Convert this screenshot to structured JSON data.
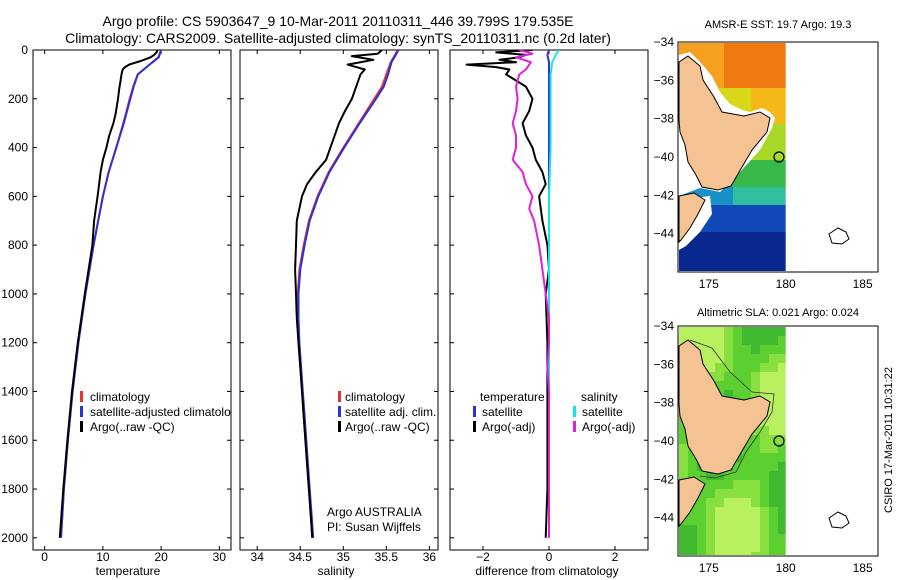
{
  "header": {
    "line1": "Argo profile: CS 5903647_9 10-Mar-2011 20110311_446 39.799S 179.535E",
    "line2": "Climatology: CARS2009. Satellite-adjusted climatology: synTS_20110311.nc (0.2d later)"
  },
  "colors": {
    "climatology": "#e8322a",
    "satellite": "#2b33d8",
    "argo": "#000000",
    "satellite_salinity_diff": "#19e3f0",
    "argo_salinity_diff": "#e020d8",
    "land": "#f5c294"
  },
  "credit": {
    "argo_label": "Argo AUSTRALIA",
    "pi_label": "PI: Susan Wijffels",
    "side_text": "CSIRO 17-Mar-2011 10:31:22"
  },
  "chart_data": [
    {
      "type": "line",
      "name": "temperature-profile",
      "xlabel": "temperature",
      "ylabel": "",
      "xlim": [
        -2,
        32
      ],
      "ylim": [
        2050,
        0
      ],
      "xticks": [
        0,
        10,
        20,
        30
      ],
      "yticks": [
        0,
        200,
        400,
        600,
        800,
        1000,
        1200,
        1400,
        1600,
        1800,
        2000
      ],
      "legend_position": "middle-right",
      "series": [
        {
          "name": "climatology",
          "color": "#e8322a",
          "depth": [
            0,
            30,
            60,
            100,
            150,
            200,
            300,
            400,
            500,
            600,
            700,
            800,
            1000,
            1200,
            1400,
            1600,
            1800,
            2000
          ],
          "values": [
            20.0,
            19.5,
            18.0,
            16.0,
            15.2,
            14.6,
            13.5,
            12.3,
            11.0,
            10.0,
            9.2,
            8.4,
            7.0,
            5.8,
            4.8,
            4.0,
            3.3,
            2.8
          ]
        },
        {
          "name": "satellite-adjusted climatology",
          "color": "#2b33d8",
          "depth": [
            0,
            30,
            60,
            100,
            150,
            200,
            300,
            400,
            500,
            600,
            700,
            800,
            1000,
            1200,
            1400,
            1600,
            1800,
            2000
          ],
          "values": [
            20.0,
            19.6,
            18.0,
            16.0,
            15.3,
            14.7,
            13.6,
            12.3,
            11.0,
            10.0,
            9.2,
            8.4,
            7.0,
            5.8,
            4.8,
            4.0,
            3.3,
            2.8
          ]
        },
        {
          "name": "Argo(..raw -QC)",
          "color": "#000000",
          "depth": [
            0,
            10,
            20,
            30,
            45,
            60,
            70,
            80,
            100,
            130,
            160,
            200,
            260,
            300,
            350,
            400,
            450,
            500,
            600,
            700,
            800,
            1000,
            1200,
            1400,
            1600,
            1800,
            2000
          ],
          "values": [
            19.4,
            19.2,
            18.8,
            18.2,
            16.5,
            14.5,
            13.8,
            13.4,
            13.2,
            13.0,
            12.8,
            12.6,
            12.2,
            11.8,
            11.1,
            10.6,
            10.0,
            9.6,
            9.1,
            8.5,
            8.2,
            6.9,
            5.7,
            4.7,
            3.9,
            3.2,
            2.6
          ]
        }
      ]
    },
    {
      "type": "line",
      "name": "salinity-profile",
      "xlabel": "salinity",
      "ylabel": "",
      "xlim": [
        33.8,
        36.1
      ],
      "ylim": [
        2050,
        0
      ],
      "xticks": [
        34,
        34.5,
        35,
        35.5,
        36
      ],
      "legend_position": "middle-right",
      "series": [
        {
          "name": "climatology",
          "color": "#e8322a",
          "depth": [
            0,
            20,
            50,
            100,
            150,
            200,
            300,
            400,
            500,
            600,
            700,
            800,
            900,
            1000,
            1100,
            1200,
            1300,
            1400,
            1500,
            1600,
            1700,
            1800,
            1900,
            2000
          ],
          "values": [
            35.63,
            35.6,
            35.55,
            35.5,
            35.45,
            35.36,
            35.18,
            35.0,
            34.83,
            34.7,
            34.6,
            34.54,
            34.49,
            34.47,
            34.47,
            34.48,
            34.5,
            34.52,
            34.54,
            34.56,
            34.58,
            34.6,
            34.62,
            34.64
          ]
        },
        {
          "name": "satellite adj. clim.",
          "color": "#2b33d8",
          "depth": [
            0,
            20,
            50,
            100,
            150,
            200,
            300,
            400,
            500,
            600,
            700,
            800,
            900,
            1000,
            1100,
            1200,
            1300,
            1400,
            1500,
            1600,
            1700,
            1800,
            1900,
            2000
          ],
          "values": [
            35.64,
            35.61,
            35.56,
            35.52,
            35.47,
            35.38,
            35.19,
            35.01,
            34.84,
            34.71,
            34.61,
            34.55,
            34.5,
            34.48,
            34.48,
            34.49,
            34.51,
            34.53,
            34.55,
            34.57,
            34.59,
            34.61,
            34.63,
            34.65
          ]
        },
        {
          "name": "Argo(..raw -QC)",
          "color": "#000000",
          "depth": [
            0,
            15,
            25,
            40,
            60,
            80,
            100,
            150,
            200,
            250,
            300,
            350,
            400,
            450,
            500,
            550,
            600,
            700,
            800,
            900,
            1000,
            1100,
            1200,
            1300,
            1400,
            1500,
            1600,
            1700,
            1800,
            1900,
            2000
          ],
          "values": [
            35.45,
            35.4,
            35.1,
            35.35,
            35.05,
            35.25,
            35.2,
            35.15,
            35.1,
            35.02,
            34.95,
            34.9,
            34.85,
            34.8,
            34.68,
            34.58,
            34.52,
            34.46,
            34.45,
            34.44,
            34.45,
            34.46,
            34.48,
            34.5,
            34.52,
            34.54,
            34.56,
            34.58,
            34.6,
            34.62,
            34.64
          ]
        }
      ],
      "annotations": [
        "Argo AUSTRALIA",
        "PI: Susan Wijffels"
      ]
    },
    {
      "type": "line",
      "name": "difference-profile",
      "xlabel": "difference from climatology",
      "ylabel": "",
      "xlim": [
        -3,
        3
      ],
      "ylim": [
        2050,
        0
      ],
      "xticks": [
        -2,
        0,
        2
      ],
      "legend_position": "middle",
      "legend_groups": [
        "temperature",
        "salinity"
      ],
      "series": [
        {
          "name": "satellite",
          "group": "temperature",
          "color": "#2b33d8",
          "depth": [
            0,
            20,
            50,
            100,
            200,
            400,
            600,
            800,
            1000,
            1200,
            1400,
            1600,
            1800,
            2000
          ],
          "values": [
            0.0,
            -0.05,
            0.0,
            0.0,
            0.0,
            0.0,
            0.0,
            0.0,
            0.0,
            0.0,
            0.0,
            0.0,
            0.0,
            0.0
          ]
        },
        {
          "name": "Argo(-adj)",
          "group": "temperature",
          "color": "#000000",
          "depth": [
            0,
            10,
            20,
            30,
            40,
            50,
            60,
            70,
            80,
            100,
            150,
            200,
            250,
            300,
            350,
            400,
            450,
            500,
            550,
            600,
            700,
            800,
            900,
            1000,
            1200,
            1400,
            1600,
            1800,
            2000
          ],
          "values": [
            -0.5,
            -1.6,
            -0.7,
            -0.9,
            -1.5,
            -1.0,
            -2.5,
            -1.6,
            -1.2,
            -1.3,
            -0.7,
            -0.5,
            -0.6,
            -0.8,
            -0.7,
            -0.5,
            -0.4,
            -0.2,
            -0.1,
            -0.3,
            -0.2,
            -0.05,
            0.0,
            -0.1,
            -0.05,
            -0.05,
            -0.05,
            -0.05,
            -0.1
          ]
        },
        {
          "name": "satellite",
          "group": "salinity",
          "color": "#19e3f0",
          "depth": [
            0,
            20,
            50,
            100,
            200,
            400,
            600,
            800,
            1000,
            1200,
            1400,
            1600,
            1800,
            2000
          ],
          "values": [
            0.3,
            0.2,
            0.1,
            0.05,
            0.05,
            0.05,
            0.0,
            0.0,
            0.0,
            0.0,
            0.0,
            0.0,
            0.0,
            0.0
          ]
        },
        {
          "name": "Argo(-adj)",
          "group": "salinity",
          "color": "#e020d8",
          "depth": [
            0,
            15,
            30,
            50,
            80,
            100,
            150,
            200,
            250,
            300,
            350,
            400,
            450,
            500,
            550,
            600,
            650,
            700,
            800,
            900,
            1000,
            1100,
            1200,
            1300,
            1400,
            1600,
            1800,
            2000
          ],
          "values": [
            -0.9,
            -0.5,
            -1.0,
            -0.55,
            -0.7,
            -0.9,
            -1.0,
            -0.95,
            -1.0,
            -1.1,
            -1.0,
            -1.0,
            -1.1,
            -0.8,
            -0.7,
            -0.5,
            -0.6,
            -0.45,
            -0.3,
            -0.2,
            -0.1,
            0.0,
            0.0,
            -0.05,
            0.0,
            0.0,
            0.0,
            0.0
          ]
        }
      ]
    },
    {
      "type": "heatmap",
      "name": "sst-map",
      "title": "AMSR-E SST: 19.7  Argo: 19.3",
      "xlim": [
        173,
        186
      ],
      "ylim": [
        -46,
        -34
      ],
      "xticks": [
        175,
        180,
        185
      ],
      "yticks": [
        -34,
        -36,
        -38,
        -40,
        -42,
        -44
      ],
      "argo_position": [
        179.535,
        -39.799
      ]
    },
    {
      "type": "heatmap",
      "name": "sla-map",
      "title": "Altimetric SLA: 0.021  Argo: 0.024",
      "xlim": [
        173,
        186
      ],
      "ylim": [
        -46,
        -34
      ],
      "xticks": [
        175,
        180,
        185
      ],
      "yticks": [
        -34,
        -36,
        -38,
        -40,
        -42,
        -44
      ],
      "argo_position": [
        179.535,
        -39.799
      ]
    }
  ]
}
